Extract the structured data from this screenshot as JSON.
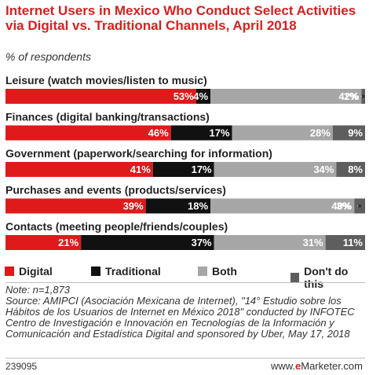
{
  "title": "Internet Users in Mexico Who Conduct Select Activities via Digital vs. Traditional Channels, April 2018",
  "subtitle": "% of respondents",
  "chart_data": {
    "type": "bar",
    "orientation": "horizontal",
    "stacked": true,
    "categories": [
      "Leisure (watch movies/listen to music)",
      "Finances (digital banking/transactions)",
      "Government (paperwork/searching for information)",
      "Purchases and events (products/services)",
      "Contacts (meeting people/friends/couples)"
    ],
    "series": [
      {
        "name": "Digital",
        "color": "#e0191b",
        "values": [
          53,
          46,
          41,
          39,
          21
        ],
        "labels": [
          "53%",
          "46%",
          "41%",
          "39%",
          "21%"
        ]
      },
      {
        "name": "Traditional",
        "color": "#111111",
        "values": [
          4,
          17,
          17,
          18,
          37
        ],
        "labels": [
          "4%",
          "17%",
          "17%",
          "18%",
          "37%"
        ]
      },
      {
        "name": "Both",
        "color": "#a6a6a6",
        "values": [
          42,
          28,
          34,
          40,
          31
        ],
        "labels": [
          "42%",
          "28%",
          "34%",
          "40%",
          "31%"
        ]
      },
      {
        "name": "Don't do this",
        "color": "#5e5e5e",
        "values": [
          1,
          9,
          8,
          3,
          11
        ],
        "labels": [
          "1%",
          "9%",
          "8%",
          "3%",
          "11%"
        ]
      }
    ],
    "xlim": [
      0,
      100
    ],
    "legend_position": "bottom"
  },
  "notes": {
    "note": "Note: n=1,873",
    "source": "Source: AMIPCI (Asociación Mexicana de Internet), \"14° Estudio sobre los Hábitos de los Usuarios de Internet en México 2018\" conducted by INFOTEC Centro de Investigación e Innovación en Tecnologías de la Información y Comunicación and Estadística Digital and sponsored by Uber, May 17, 2018"
  },
  "footer": {
    "chart_id": "239095",
    "brand_prefix": "www.",
    "brand_e": "e",
    "brand_suffix": "Marketer.com"
  }
}
